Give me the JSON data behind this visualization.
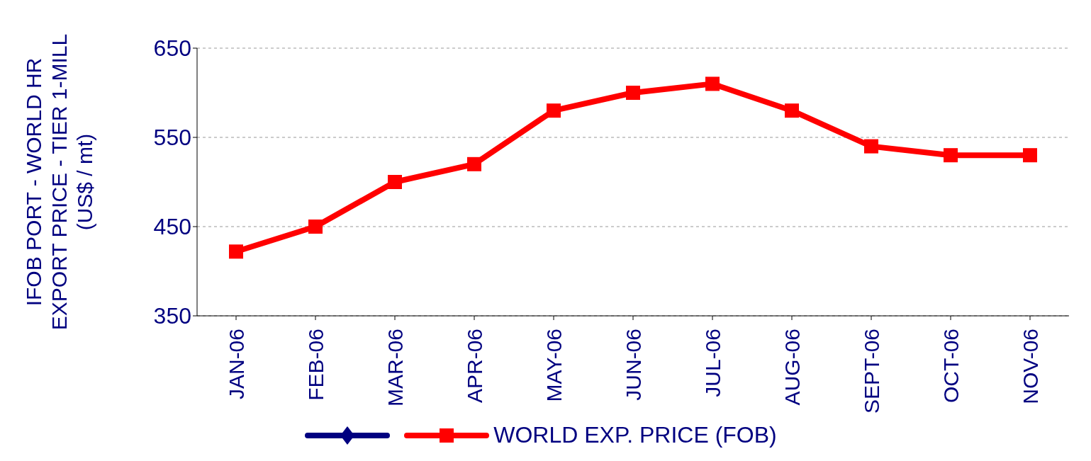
{
  "chart_data": {
    "type": "line",
    "ylabel": "IFOB PORT - WORLD HR\nEXPORT PRICE - TIER 1-MILL\n(US$ / mt)",
    "categories": [
      "JAN-06",
      "FEB-06",
      "MAR-06",
      "APR-06",
      "MAY-06",
      "JUN-06",
      "JUL-06",
      "AUG-06",
      "SEPT-06",
      "OCT-06",
      "NOV-06"
    ],
    "series": [
      {
        "color": "#000080",
        "marker": "diamond",
        "values": [
          null,
          null,
          null,
          null,
          null,
          null,
          null,
          null,
          null,
          null,
          null
        ]
      },
      {
        "name": "WORLD EXP. PRICE (FOB)",
        "color": "#ff0000",
        "marker": "square",
        "values": [
          422,
          450,
          500,
          520,
          580,
          600,
          610,
          580,
          540,
          530,
          530
        ]
      }
    ],
    "ylim": [
      350,
      650
    ],
    "yticks": [
      350,
      450,
      550,
      650
    ],
    "grid": "y",
    "legend": "bottom",
    "line_style": "solid"
  }
}
